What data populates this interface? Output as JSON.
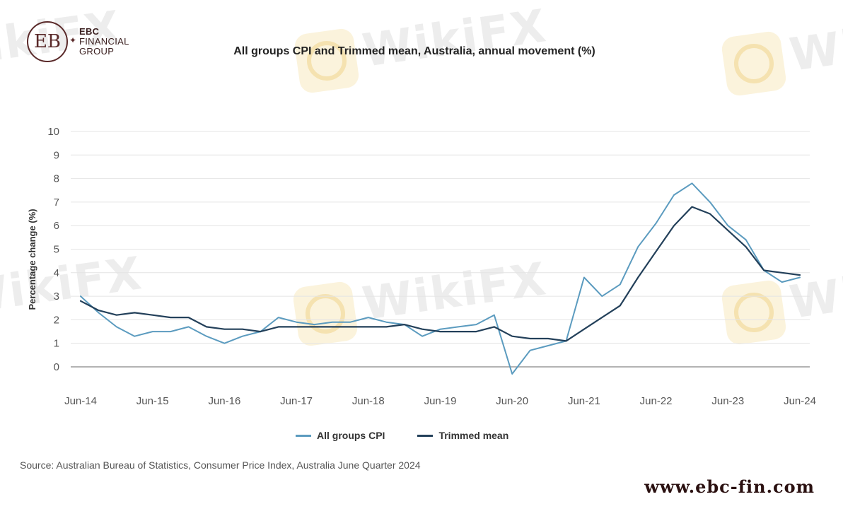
{
  "watermark": {
    "text": "WikiFX"
  },
  "logo": {
    "line1": "EBC",
    "line2": "FINANCIAL",
    "line3": "GROUP",
    "mark": "EB"
  },
  "website": "www.ebc-fin.com",
  "source": "Source: Australian Bureau of Statistics, Consumer Price Index, Australia June Quarter 2024",
  "chart_data": {
    "type": "line",
    "title": "All groups CPI and Trimmed mean, Australia, annual movement (%)",
    "xlabel": "",
    "ylabel": "Percentage change (%)",
    "ylim": [
      0,
      10
    ],
    "yticks": [
      0,
      1,
      2,
      3,
      4,
      5,
      6,
      7,
      8,
      9,
      10
    ],
    "xticks": [
      "Jun-14",
      "Jun-15",
      "Jun-16",
      "Jun-17",
      "Jun-18",
      "Jun-19",
      "Jun-20",
      "Jun-21",
      "Jun-22",
      "Jun-23",
      "Jun-24"
    ],
    "grid": true,
    "legend": "bottom",
    "x": [
      "Jun-14",
      "Sep-14",
      "Dec-14",
      "Mar-15",
      "Jun-15",
      "Sep-15",
      "Dec-15",
      "Mar-16",
      "Jun-16",
      "Sep-16",
      "Dec-16",
      "Mar-17",
      "Jun-17",
      "Sep-17",
      "Dec-17",
      "Mar-18",
      "Jun-18",
      "Sep-18",
      "Dec-18",
      "Mar-19",
      "Jun-19",
      "Sep-19",
      "Dec-19",
      "Mar-20",
      "Jun-20",
      "Sep-20",
      "Dec-20",
      "Mar-21",
      "Jun-21",
      "Sep-21",
      "Dec-21",
      "Mar-22",
      "Jun-22",
      "Sep-22",
      "Dec-22",
      "Mar-23",
      "Jun-23",
      "Sep-23",
      "Dec-23",
      "Mar-24",
      "Jun-24"
    ],
    "series": [
      {
        "name": "All groups CPI",
        "color": "#5b9bbf",
        "values": [
          3.0,
          2.3,
          1.7,
          1.3,
          1.5,
          1.5,
          1.7,
          1.3,
          1.0,
          1.3,
          1.5,
          2.1,
          1.9,
          1.8,
          1.9,
          1.9,
          2.1,
          1.9,
          1.8,
          1.3,
          1.6,
          1.7,
          1.8,
          2.2,
          -0.3,
          0.7,
          0.9,
          1.1,
          3.8,
          3.0,
          3.5,
          5.1,
          6.1,
          7.3,
          7.8,
          7.0,
          6.0,
          5.4,
          4.1,
          3.6,
          3.8
        ]
      },
      {
        "name": "Trimmed mean",
        "color": "#23405a",
        "values": [
          2.8,
          2.4,
          2.2,
          2.3,
          2.2,
          2.1,
          2.1,
          1.7,
          1.6,
          1.6,
          1.5,
          1.7,
          1.7,
          1.7,
          1.7,
          1.7,
          1.7,
          1.7,
          1.8,
          1.6,
          1.5,
          1.5,
          1.5,
          1.7,
          1.3,
          1.2,
          1.2,
          1.1,
          1.6,
          2.1,
          2.6,
          3.8,
          4.9,
          6.0,
          6.8,
          6.5,
          5.8,
          5.1,
          4.1,
          4.0,
          3.9
        ]
      }
    ]
  }
}
